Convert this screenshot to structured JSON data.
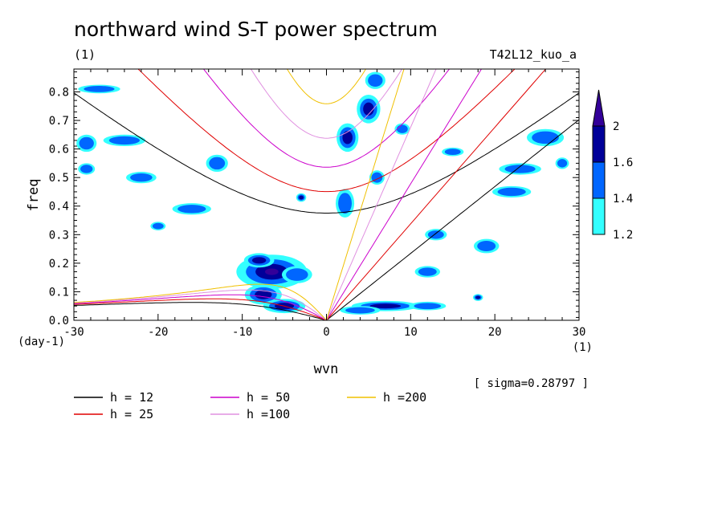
{
  "chart_data": {
    "type": "heatmap",
    "title": "northward wind S-T power spectrum",
    "subtitle_left": "(1)",
    "subtitle_right": "T42L12_kuo_a",
    "xlabel": "wvn",
    "ylabel": "freq",
    "x_unit": "(1)",
    "y_unit": "(day-1)",
    "xlim": [
      -30,
      30
    ],
    "ylim": [
      0,
      0.88
    ],
    "x_ticks": [
      -30,
      -20,
      -10,
      0,
      10,
      20,
      30
    ],
    "x_tick_labels": [
      "-30",
      "-20",
      "-10",
      "0",
      "10",
      "20",
      "30"
    ],
    "y_ticks": [
      0,
      0.1,
      0.2,
      0.3,
      0.4,
      0.5,
      0.6,
      0.7,
      0.8
    ],
    "y_tick_labels": [
      "0.0",
      "0.1",
      "0.2",
      "0.3",
      "0.4",
      "0.5",
      "0.6",
      "0.7",
      "0.8"
    ],
    "sigma_label": "[ sigma=0.28797 ]",
    "colorbar": {
      "levels": [
        1.2,
        1.4,
        1.6,
        2
      ],
      "level_labels": [
        "1.2",
        "1.4",
        "1.6",
        "2"
      ],
      "colors": [
        "#33ffff",
        "#0066ff",
        "#000099",
        "#330099"
      ]
    },
    "dispersion_curves": [
      {
        "label": "h = 12",
        "h": 12,
        "color": "#000000"
      },
      {
        "label": "h = 25",
        "h": 25,
        "color": "#e00000"
      },
      {
        "label": "h = 50",
        "h": 50,
        "color": "#cc00cc"
      },
      {
        "label": "h =100",
        "h": 100,
        "color": "#e090e0"
      },
      {
        "label": "h =200",
        "h": 200,
        "color": "#f0c000"
      }
    ],
    "power_blobs": [
      {
        "x": -6.5,
        "y": 0.17,
        "rx": 4.2,
        "ry": 0.06,
        "level": 3
      },
      {
        "x": -7.5,
        "y": 0.09,
        "rx": 2.2,
        "ry": 0.035,
        "level": 2
      },
      {
        "x": -5,
        "y": 0.05,
        "rx": 2.5,
        "ry": 0.025,
        "level": 2
      },
      {
        "x": -8,
        "y": 0.21,
        "rx": 1.8,
        "ry": 0.025,
        "level": 2
      },
      {
        "x": -3.5,
        "y": 0.16,
        "rx": 1.8,
        "ry": 0.03,
        "level": 1
      },
      {
        "x": 7,
        "y": 0.05,
        "rx": 4,
        "ry": 0.018,
        "level": 2
      },
      {
        "x": 4,
        "y": 0.035,
        "rx": 2.4,
        "ry": 0.015,
        "level": 1
      },
      {
        "x": 12,
        "y": 0.05,
        "rx": 2.2,
        "ry": 0.015,
        "level": 1
      },
      {
        "x": 2.2,
        "y": 0.41,
        "rx": 1.1,
        "ry": 0.05,
        "level": 1
      },
      {
        "x": 2.5,
        "y": 0.64,
        "rx": 1.3,
        "ry": 0.05,
        "level": 2
      },
      {
        "x": 5,
        "y": 0.74,
        "rx": 1.4,
        "ry": 0.05,
        "level": 2
      },
      {
        "x": 5.8,
        "y": 0.84,
        "rx": 1.2,
        "ry": 0.03,
        "level": 1
      },
      {
        "x": 6,
        "y": 0.5,
        "rx": 0.9,
        "ry": 0.025,
        "level": 1
      },
      {
        "x": -3,
        "y": 0.43,
        "rx": 0.6,
        "ry": 0.015,
        "level": 2
      },
      {
        "x": -16,
        "y": 0.39,
        "rx": 2.3,
        "ry": 0.02,
        "level": 1
      },
      {
        "x": -24,
        "y": 0.63,
        "rx": 2.5,
        "ry": 0.02,
        "level": 1
      },
      {
        "x": -22,
        "y": 0.5,
        "rx": 1.8,
        "ry": 0.02,
        "level": 1
      },
      {
        "x": -28.5,
        "y": 0.62,
        "rx": 1.2,
        "ry": 0.03,
        "level": 1
      },
      {
        "x": -28.5,
        "y": 0.53,
        "rx": 1,
        "ry": 0.02,
        "level": 1
      },
      {
        "x": -13,
        "y": 0.55,
        "rx": 1.3,
        "ry": 0.03,
        "level": 1
      },
      {
        "x": 23,
        "y": 0.53,
        "rx": 2.5,
        "ry": 0.02,
        "level": 1
      },
      {
        "x": 26,
        "y": 0.64,
        "rx": 2.2,
        "ry": 0.03,
        "level": 1
      },
      {
        "x": 22,
        "y": 0.45,
        "rx": 2.3,
        "ry": 0.02,
        "level": 1
      },
      {
        "x": 15,
        "y": 0.59,
        "rx": 1.3,
        "ry": 0.015,
        "level": 1
      },
      {
        "x": 19,
        "y": 0.26,
        "rx": 1.5,
        "ry": 0.025,
        "level": 1
      },
      {
        "x": 18,
        "y": 0.08,
        "rx": 0.6,
        "ry": 0.012,
        "level": 2
      },
      {
        "x": 28,
        "y": 0.55,
        "rx": 0.8,
        "ry": 0.02,
        "level": 1
      },
      {
        "x": 9,
        "y": 0.67,
        "rx": 0.9,
        "ry": 0.02,
        "level": 1
      },
      {
        "x": -27,
        "y": 0.81,
        "rx": 2.5,
        "ry": 0.015,
        "level": 1
      },
      {
        "x": 13,
        "y": 0.3,
        "rx": 1.3,
        "ry": 0.02,
        "level": 1
      },
      {
        "x": 12,
        "y": 0.17,
        "rx": 1.5,
        "ry": 0.02,
        "level": 1
      },
      {
        "x": -20,
        "y": 0.33,
        "rx": 0.9,
        "ry": 0.015,
        "level": 1
      }
    ]
  }
}
